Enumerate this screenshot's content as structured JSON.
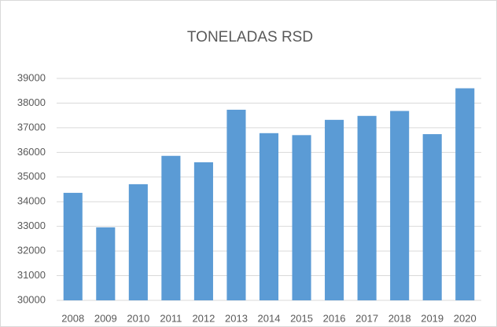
{
  "chart_data": {
    "type": "bar",
    "title": "TONELADAS RSD",
    "categories": [
      "2008",
      "2009",
      "2010",
      "2011",
      "2012",
      "2013",
      "2014",
      "2015",
      "2016",
      "2017",
      "2018",
      "2019",
      "2020"
    ],
    "values": [
      34360,
      32960,
      34710,
      35860,
      35600,
      37730,
      36780,
      36700,
      37320,
      37480,
      37680,
      36740,
      38600
    ],
    "color": "#5b9bd5",
    "ylim": [
      30000,
      39000
    ],
    "yticks": [
      30000,
      31000,
      32000,
      33000,
      34000,
      35000,
      36000,
      37000,
      38000,
      39000
    ],
    "grid": true
  }
}
